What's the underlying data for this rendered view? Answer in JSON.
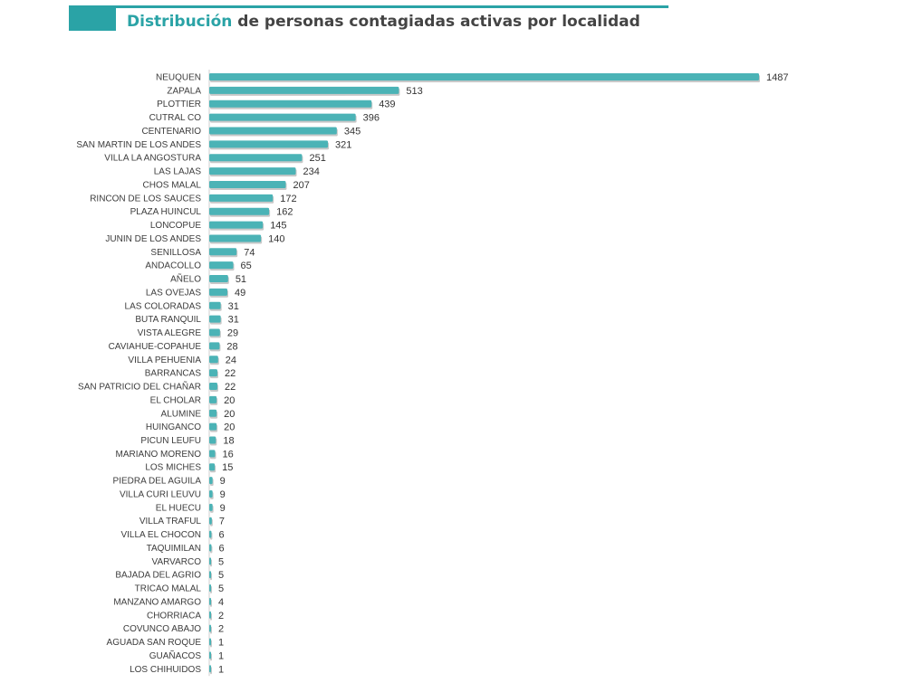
{
  "title": {
    "accent": "Distribución",
    "rest": " de personas contagiadas activas por localidad"
  },
  "colors": {
    "bar": "#4bb3b6",
    "bar_shadow": "#9a9a9a",
    "axis": "#cfcfcf",
    "accent": "#2aa3a6"
  },
  "chart_data": {
    "type": "bar",
    "orientation": "horizontal",
    "title": "Distribución de personas contagiadas activas por localidad",
    "xlabel": "",
    "ylabel": "",
    "xlim": [
      0,
      1487
    ],
    "grid": false,
    "legend": "none",
    "categories": [
      "NEUQUEN",
      "ZAPALA",
      "PLOTTIER",
      "CUTRAL CO",
      "CENTENARIO",
      "SAN MARTIN DE LOS ANDES",
      "VILLA LA ANGOSTURA",
      "LAS LAJAS",
      "CHOS MALAL",
      "RINCON DE LOS SAUCES",
      "PLAZA HUINCUL",
      "LONCOPUE",
      "JUNIN DE LOS ANDES",
      "SENILLOSA",
      "ANDACOLLO",
      "AÑELO",
      "LAS OVEJAS",
      "LAS COLORADAS",
      "BUTA RANQUIL",
      "VISTA ALEGRE",
      "CAVIAHUE-COPAHUE",
      "VILLA PEHUENIA",
      "BARRANCAS",
      "SAN PATRICIO DEL CHAÑAR",
      "EL CHOLAR",
      "ALUMINE",
      "HUINGANCO",
      "PICUN LEUFU",
      "MARIANO MORENO",
      "LOS MICHES",
      "PIEDRA DEL AGUILA",
      "VILLA CURI LEUVU",
      "EL HUECU",
      "VILLA TRAFUL",
      "VILLA EL CHOCON",
      "TAQUIMILAN",
      "VARVARCO",
      "BAJADA DEL AGRIO",
      "TRICAO MALAL",
      "MANZANO AMARGO",
      "CHORRIACA",
      "COVUNCO ABAJO",
      "AGUADA SAN ROQUE",
      "GUAÑACOS",
      "LOS CHIHUIDOS"
    ],
    "values": [
      1487,
      513,
      439,
      396,
      345,
      321,
      251,
      234,
      207,
      172,
      162,
      145,
      140,
      74,
      65,
      51,
      49,
      31,
      31,
      29,
      28,
      24,
      22,
      22,
      20,
      20,
      20,
      18,
      16,
      15,
      9,
      9,
      9,
      7,
      6,
      6,
      5,
      5,
      5,
      4,
      2,
      2,
      1,
      1,
      1
    ]
  }
}
